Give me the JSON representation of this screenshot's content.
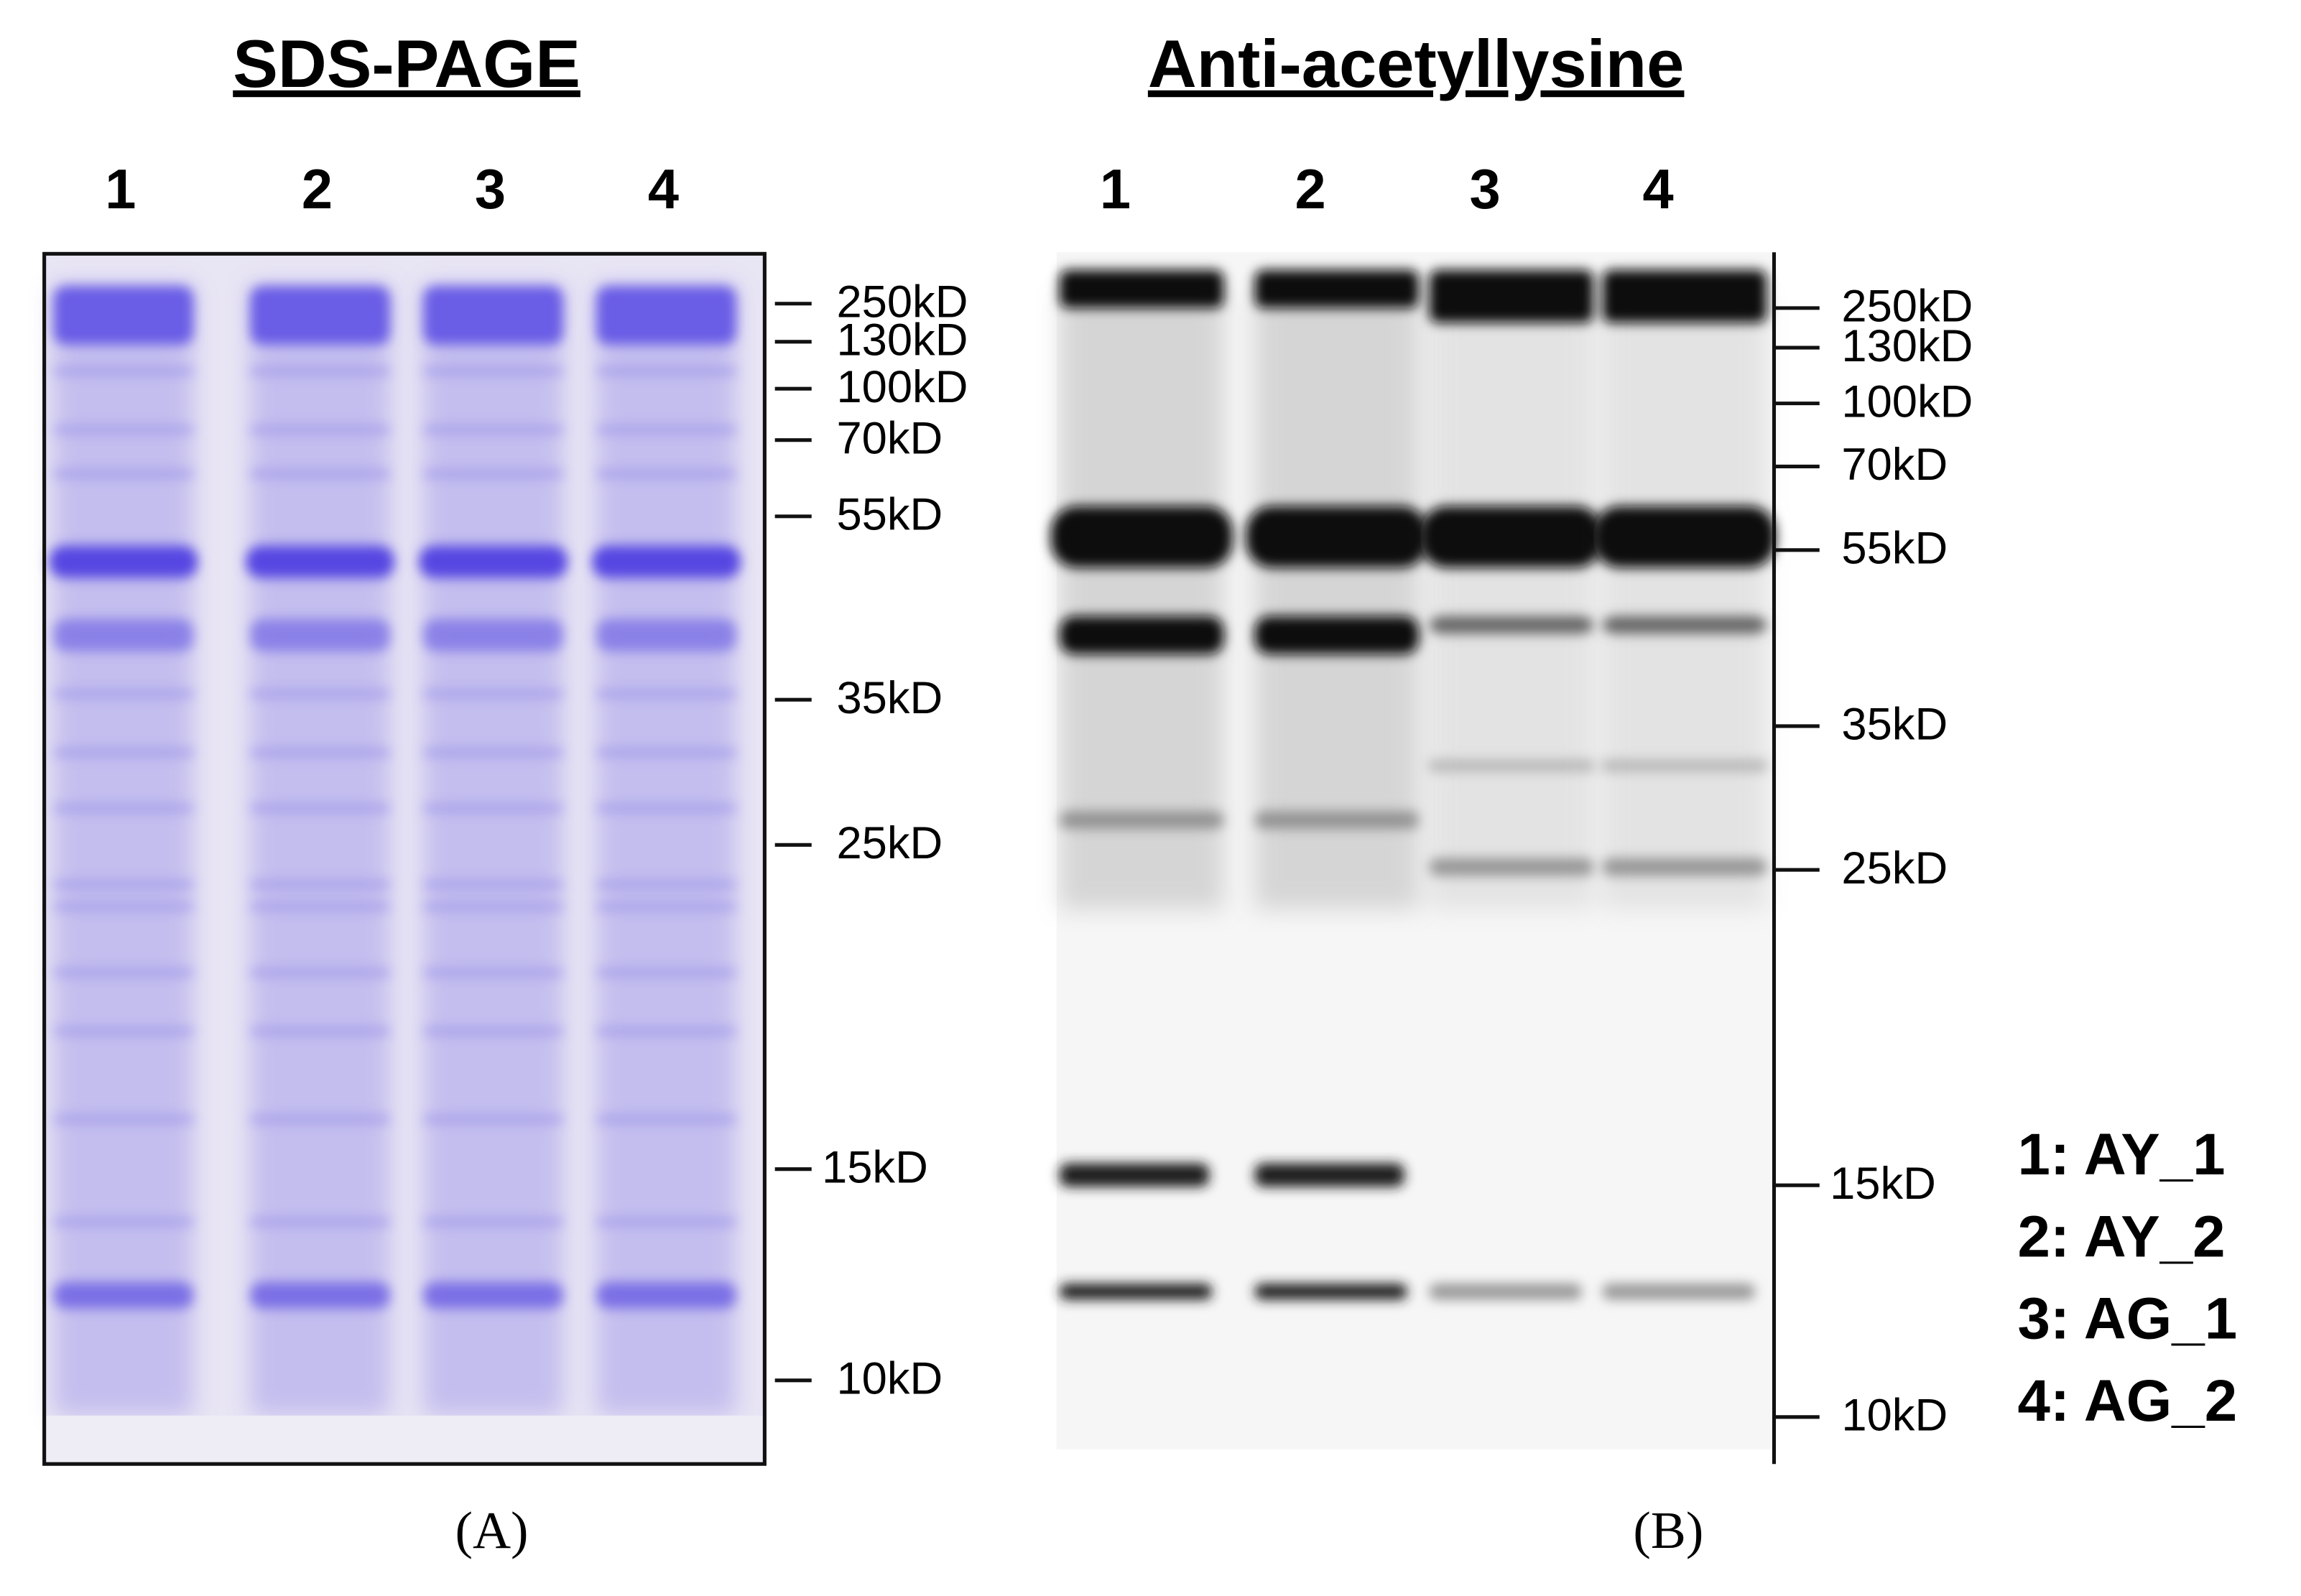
{
  "panels": [
    {
      "title": "SDS-PAGE",
      "label": "(A)",
      "lanes": [
        "1",
        "2",
        "3",
        "4"
      ],
      "markers": [
        "250kD",
        "130kD",
        "100kD",
        "70kD",
        "55kD",
        "35kD",
        "25kD",
        "15kD",
        "10kD"
      ]
    },
    {
      "title": "Anti-acetyllysine",
      "label": "(B)",
      "lanes": [
        "1",
        "2",
        "3",
        "4"
      ],
      "markers": [
        "250kD",
        "130kD",
        "100kD",
        "70kD",
        "55kD",
        "35kD",
        "25kD",
        "15kD",
        "10kD"
      ]
    }
  ],
  "legend": [
    "1: AY_1",
    "2: AY_2",
    "3: AG_1",
    "4: AG_2"
  ]
}
